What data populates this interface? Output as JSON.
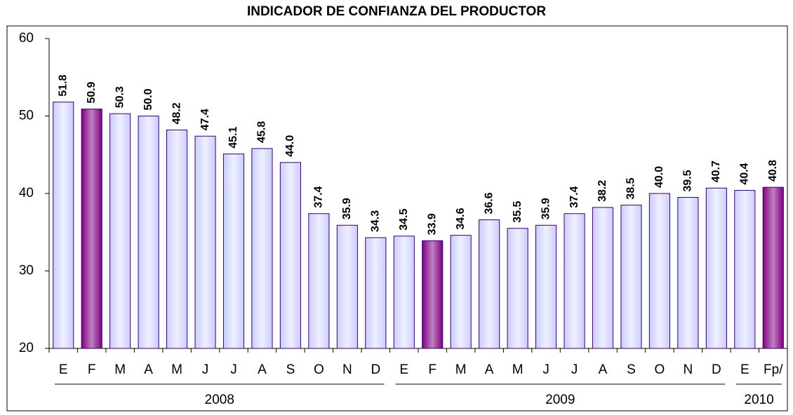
{
  "chart_data": {
    "type": "bar",
    "title": "INDICADOR DE CONFIANZA DEL PRODUCTOR",
    "groups": [
      {
        "label": "2008",
        "categories": [
          "E",
          "F",
          "M",
          "A",
          "M",
          "J",
          "J",
          "A",
          "S",
          "O",
          "N",
          "D"
        ]
      },
      {
        "label": "2009",
        "categories": [
          "E",
          "F",
          "M",
          "A",
          "M",
          "J",
          "J",
          "A",
          "S",
          "O",
          "N",
          "D"
        ]
      },
      {
        "label": "2010",
        "categories": [
          "E",
          "Fp/"
        ]
      }
    ],
    "values": [
      51.8,
      50.9,
      50.3,
      50.0,
      48.2,
      47.4,
      45.1,
      45.8,
      44.0,
      37.4,
      35.9,
      34.3,
      34.5,
      33.9,
      34.6,
      36.6,
      35.5,
      35.9,
      37.4,
      38.2,
      38.5,
      40.0,
      39.5,
      40.7,
      40.4,
      40.8
    ],
    "value_labels": [
      "51.8",
      "50.9",
      "50.3",
      "50.0",
      "48.2",
      "47.4",
      "45.1",
      "45.8",
      "44.0",
      "37.4",
      "35.9",
      "34.3",
      "34.5",
      "33.9",
      "34.6",
      "36.6",
      "35.5",
      "35.9",
      "37.4",
      "38.2",
      "38.5",
      "40.0",
      "39.5",
      "40.7",
      "40.4",
      "40.8"
    ],
    "colors": [
      "#ccccff",
      "#800080",
      "#ccccff",
      "#ccccff",
      "#ccccff",
      "#ccccff",
      "#ccccff",
      "#ccccff",
      "#ccccff",
      "#ccccff",
      "#ccccff",
      "#ccccff",
      "#ccccff",
      "#800080",
      "#ccccff",
      "#ccccff",
      "#ccccff",
      "#ccccff",
      "#ccccff",
      "#ccccff",
      "#ccccff",
      "#ccccff",
      "#ccccff",
      "#ccccff",
      "#ccccff",
      "#800080"
    ],
    "ylim": [
      20,
      60
    ],
    "yticks": [
      20,
      30,
      40,
      50,
      60
    ],
    "grid": false
  }
}
